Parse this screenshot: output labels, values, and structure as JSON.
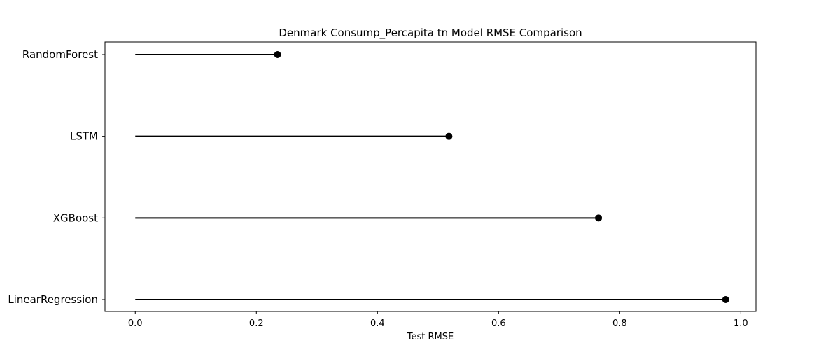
{
  "chart_data": {
    "type": "lollipop",
    "orientation": "horizontal",
    "title": "Denmark Consump_Percapita tn Model RMSE Comparison",
    "xlabel": "Test RMSE",
    "ylabel": "",
    "categories": [
      "RandomForest",
      "LSTM",
      "XGBoost",
      "LinearRegression"
    ],
    "values": [
      0.235,
      0.518,
      0.765,
      0.975
    ],
    "xlim": [
      -0.05,
      1.025
    ],
    "xticks": [
      0.0,
      0.2,
      0.4,
      0.6,
      0.8,
      1.0
    ],
    "xtick_labels": [
      "0.0",
      "0.2",
      "0.4",
      "0.6",
      "0.8",
      "1.0"
    ],
    "grid": false,
    "legend": "none",
    "colors": {
      "stem": "#000000",
      "marker": "#000000",
      "frame": "#000000"
    }
  }
}
